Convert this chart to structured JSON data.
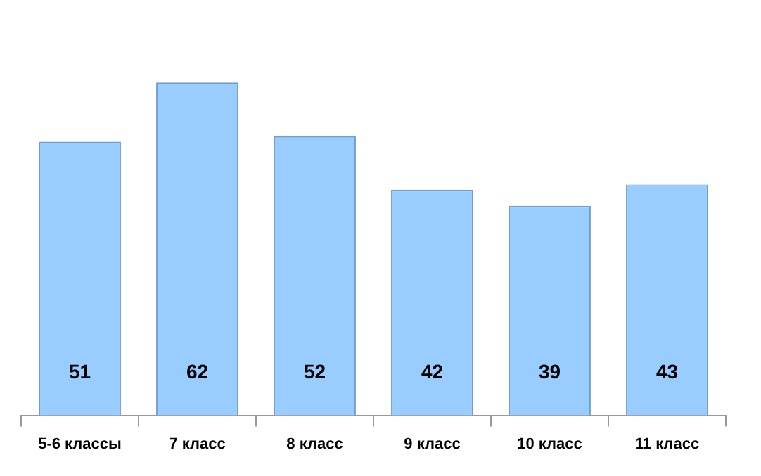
{
  "chart_data": {
    "type": "bar",
    "categories": [
      "5-6 классы",
      "7 класс",
      "8 класс",
      "9 класс",
      "10 класс",
      "11 класс"
    ],
    "values": [
      51,
      62,
      52,
      42,
      39,
      43
    ],
    "color": "#99ccff",
    "tick_labels": "x",
    "data_labels": true,
    "legend": false,
    "grid": false
  }
}
